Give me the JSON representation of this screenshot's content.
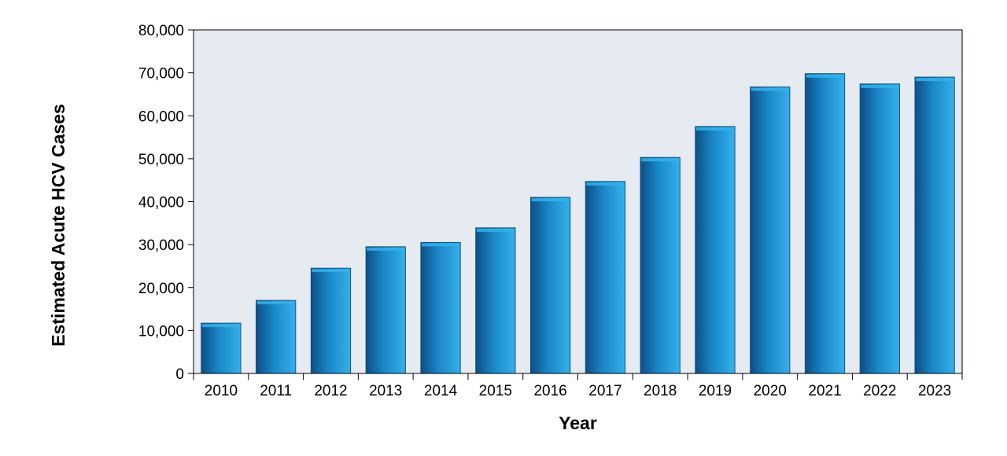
{
  "chart_data": {
    "type": "bar",
    "title": "",
    "xlabel": "Year",
    "ylabel": "Estimated Acute HCV Cases",
    "categories": [
      "2010",
      "2011",
      "2012",
      "2013",
      "2014",
      "2015",
      "2016",
      "2017",
      "2018",
      "2019",
      "2020",
      "2021",
      "2022",
      "2023"
    ],
    "values": [
      11700,
      17000,
      24500,
      29500,
      30500,
      33900,
      41000,
      44700,
      50300,
      57500,
      66700,
      69800,
      67400,
      69000
    ],
    "ylim": [
      0,
      80000
    ],
    "yticks": [
      0,
      10000,
      20000,
      30000,
      40000,
      50000,
      60000,
      70000,
      80000
    ],
    "ytick_labels": [
      "0",
      "10,000",
      "20,000",
      "30,000",
      "40,000",
      "50,000",
      "60,000",
      "70,000",
      "80,000"
    ],
    "grid": false,
    "legend": "none",
    "colors": {
      "plot_background": "#e6eaf1",
      "bar_dark": "#0d4f86",
      "bar_mid": "#1a87c8",
      "bar_light": "#35b1ea",
      "axis": "#000000"
    }
  }
}
